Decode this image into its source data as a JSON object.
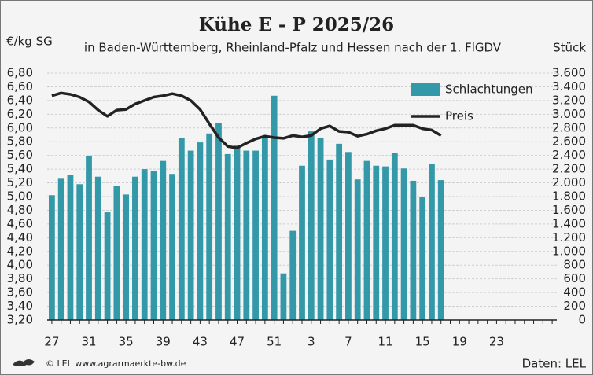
{
  "chart_data": {
    "type": "bar-line",
    "title": "Kühe E - P 2025/26",
    "subtitle": "in Baden-Württemberg, Rheinland-Pfalz und Hessen nach der 1. FlGDV",
    "y_label": "€/kg SG",
    "y2_label": "Stück",
    "footer_left": "© LEL www.agrarmaerkte-bw.de",
    "footer_right": "Daten: LEL",
    "categories": [
      "27",
      null,
      null,
      null,
      "31",
      null,
      null,
      null,
      "35",
      null,
      null,
      null,
      "39",
      null,
      null,
      null,
      "43",
      null,
      null,
      null,
      "47",
      null,
      null,
      null,
      "51",
      null,
      null,
      null,
      "3",
      null,
      null,
      null,
      "7",
      null,
      null,
      null,
      "11",
      null,
      null,
      null,
      "15",
      null,
      null,
      null,
      "19",
      null,
      null,
      null,
      "23",
      null,
      null,
      null,
      null,
      null,
      null
    ],
    "series": [
      {
        "name": "Schlachtungen",
        "type": "bar",
        "axis": "y2",
        "color": "#3399a8",
        "values": [
          1820,
          2060,
          2120,
          1980,
          2390,
          2090,
          1570,
          1960,
          1830,
          2090,
          2200,
          2170,
          2320,
          2130,
          2650,
          2470,
          2590,
          2720,
          2870,
          2420,
          2550,
          2470,
          2470,
          2670,
          3270,
          680,
          1300,
          2250,
          2750,
          2660,
          2340,
          2570,
          2450,
          2050,
          2320,
          2250,
          2240,
          2440,
          2210,
          2030,
          1790,
          2270,
          2040,
          null,
          null,
          null,
          null,
          null,
          null,
          null,
          null,
          null,
          null,
          null,
          null
        ]
      },
      {
        "name": "Preis",
        "type": "line",
        "axis": "y",
        "color": "#222222",
        "values": [
          6.47,
          6.51,
          6.49,
          6.45,
          6.38,
          6.26,
          6.17,
          6.26,
          6.27,
          6.35,
          6.4,
          6.45,
          6.47,
          6.5,
          6.47,
          6.4,
          6.27,
          6.06,
          5.86,
          5.73,
          5.71,
          5.78,
          5.84,
          5.88,
          5.86,
          5.85,
          5.89,
          5.87,
          5.89,
          5.99,
          6.03,
          5.95,
          5.94,
          5.88,
          5.91,
          5.96,
          5.99,
          6.04,
          6.04,
          6.04,
          5.99,
          5.97,
          5.89,
          null,
          null,
          null,
          null,
          null,
          null,
          null,
          null,
          null,
          null,
          null,
          null
        ]
      }
    ],
    "ylim": [
      3.2,
      6.8
    ],
    "yticks": [
      {
        "value": 3.2,
        "label": "3,20"
      },
      {
        "value": 3.4,
        "label": "3,40"
      },
      {
        "value": 3.6,
        "label": "3,60"
      },
      {
        "value": 3.8,
        "label": "3,80"
      },
      {
        "value": 4.0,
        "label": "4,00"
      },
      {
        "value": 4.2,
        "label": "4,20"
      },
      {
        "value": 4.4,
        "label": "4,40"
      },
      {
        "value": 4.6,
        "label": "4,60"
      },
      {
        "value": 4.8,
        "label": "4,80"
      },
      {
        "value": 5.0,
        "label": "5,00"
      },
      {
        "value": 5.2,
        "label": "5,20"
      },
      {
        "value": 5.4,
        "label": "5,40"
      },
      {
        "value": 5.6,
        "label": "5,60"
      },
      {
        "value": 5.8,
        "label": "5,80"
      },
      {
        "value": 6.0,
        "label": "6,00"
      },
      {
        "value": 6.2,
        "label": "6,20"
      },
      {
        "value": 6.4,
        "label": "6,40"
      },
      {
        "value": 6.6,
        "label": "6,60"
      },
      {
        "value": 6.8,
        "label": "6,80"
      }
    ],
    "y2lim": [
      0,
      3600
    ],
    "y2ticks": [
      0,
      200,
      400,
      600,
      800,
      {
        "value": 1000,
        "label": "1.000"
      },
      {
        "value": 1200,
        "label": "1.200"
      },
      {
        "value": 1400,
        "label": "1.400"
      },
      {
        "value": 1600,
        "label": "1.600"
      },
      {
        "value": 1800,
        "label": "1.800"
      },
      {
        "value": 2000,
        "label": "2.000"
      },
      {
        "value": 2200,
        "label": "2.200"
      },
      {
        "value": 2400,
        "label": "2.400"
      },
      {
        "value": 2600,
        "label": "2.600"
      },
      {
        "value": 2800,
        "label": "2.800"
      },
      {
        "value": 3000,
        "label": "3.000"
      },
      {
        "value": 3200,
        "label": "3.200"
      },
      {
        "value": 3400,
        "label": "3.400"
      },
      {
        "value": 3600,
        "label": "3.600"
      }
    ],
    "grid": true
  }
}
